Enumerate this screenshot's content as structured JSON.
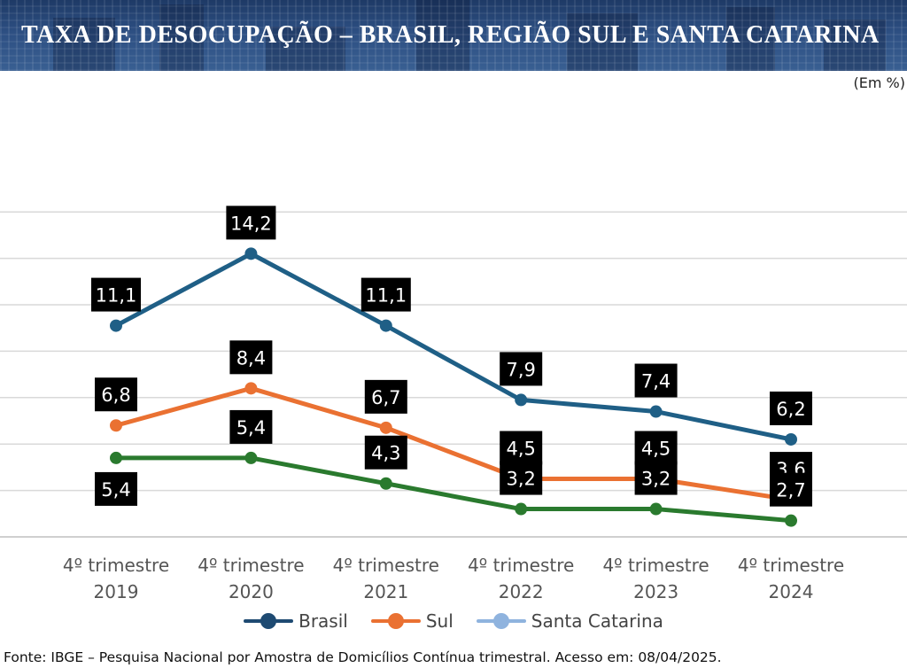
{
  "header": {
    "title": "TAXA DE DESOCUPAÇÃO – BRASIL, REGIÃO SUL E SANTA CATARINA"
  },
  "unit_label": "(Em %)",
  "source": "Fonte: IBGE – Pesquisa Nacional por Amostra de Domicílios Contínua trimestral. Acesso em: 08/04/2025.",
  "chart_data": {
    "type": "line",
    "categories": [
      [
        "4º trimestre",
        "2019"
      ],
      [
        "4º trimestre",
        "2020"
      ],
      [
        "4º trimestre",
        "2021"
      ],
      [
        "4º trimestre",
        "2022"
      ],
      [
        "4º trimestre",
        "2023"
      ],
      [
        "4º trimestre",
        "2024"
      ]
    ],
    "series": [
      {
        "name": "Brasil",
        "color": "#1f5f86",
        "legend_color": "#1e4a72",
        "values": [
          11.1,
          14.2,
          11.1,
          7.9,
          7.4,
          6.2
        ],
        "label_pos": [
          "above",
          "above",
          "above",
          "above",
          "above",
          "above"
        ]
      },
      {
        "name": "Sul",
        "color": "#ea7132",
        "legend_color": "#ea7132",
        "values": [
          6.8,
          8.4,
          6.7,
          4.5,
          4.5,
          3.6
        ],
        "label_pos": [
          "above",
          "above",
          "above",
          "above",
          "above",
          "above"
        ]
      },
      {
        "name": "Santa Catarina",
        "color": "#2a7a2e",
        "legend_color": "#8fb3de",
        "values": [
          5.4,
          5.4,
          4.3,
          3.2,
          3.2,
          2.7
        ],
        "label_pos": [
          "below",
          "above",
          "above",
          "above",
          "above",
          "above"
        ]
      }
    ],
    "ylim": [
      2,
      16
    ],
    "grid": true,
    "legend_position": "bottom-center"
  }
}
